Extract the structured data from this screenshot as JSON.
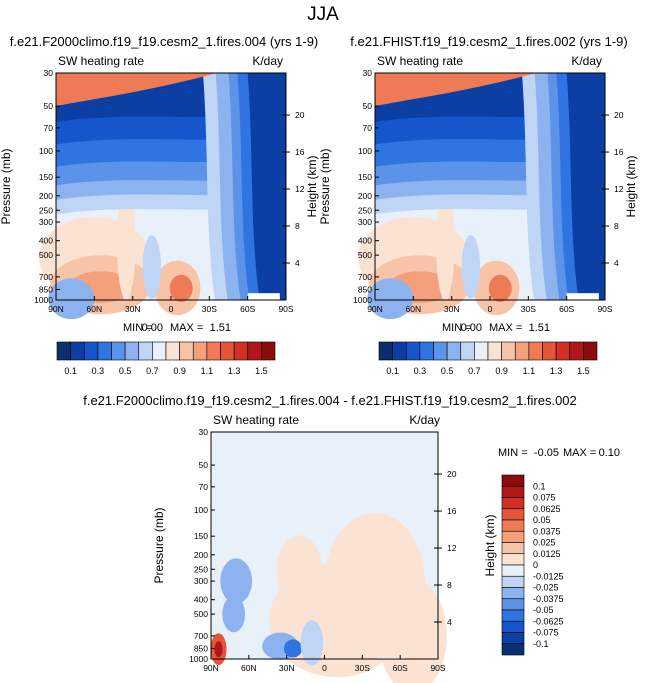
{
  "figure_title": "JJA",
  "chart_data": [
    {
      "type": "heatmap",
      "title": "f.e21.F2000climo.f19_f19.cesm2_1.fires.004 (yrs 1-9)",
      "field_label": "SW heating rate",
      "units": "K/day",
      "ylabel": "Pressure (mb)",
      "ylabel_right": "Height (km)",
      "x_ticks": [
        "90N",
        "60N",
        "30N",
        "0",
        "30S",
        "60S",
        "90S"
      ],
      "y_ticks": [
        "30",
        "50",
        "70",
        "100",
        "150",
        "200",
        "250",
        "300",
        "400",
        "500",
        "700",
        "850",
        "1000"
      ],
      "height_ticks": [
        "20",
        "16",
        "12",
        "8",
        "4"
      ],
      "xlim": [
        90,
        -90
      ],
      "ylim": [
        1000,
        30
      ],
      "y_scale": "log",
      "stats": {
        "min_label": "MIN =",
        "min": "0.00",
        "max_label": "MAX =",
        "max": "1.51"
      },
      "colorbar": {
        "orientation": "horizontal",
        "labels": [
          "0.1",
          "0.3",
          "0.5",
          "0.7",
          "0.9",
          "1.1",
          "1.3",
          "1.5"
        ],
        "colors": [
          "#08306b",
          "#0b3fa3",
          "#1556cc",
          "#2f74e0",
          "#5b93e8",
          "#8cb3ef",
          "#bfd5f5",
          "#e8f0fa",
          "#fbe3d4",
          "#f8c4a8",
          "#f4a07c",
          "#ee7b55",
          "#e5553a",
          "#d13125",
          "#b01818",
          "#8c0c0c"
        ]
      }
    },
    {
      "type": "heatmap",
      "title": "f.e21.FHIST.f19_f19.cesm2_1.fires.002 (yrs 1-9)",
      "field_label": "SW heating rate",
      "units": "K/day",
      "ylabel": "Pressure (mb)",
      "ylabel_right": "Height (km)",
      "x_ticks": [
        "90N",
        "60N",
        "30N",
        "0",
        "30S",
        "60S",
        "90S"
      ],
      "y_ticks": [
        "30",
        "50",
        "70",
        "100",
        "150",
        "200",
        "250",
        "300",
        "400",
        "500",
        "700",
        "850",
        "1000"
      ],
      "height_ticks": [
        "20",
        "16",
        "12",
        "8",
        "4"
      ],
      "xlim": [
        90,
        -90
      ],
      "ylim": [
        1000,
        30
      ],
      "y_scale": "log",
      "stats": {
        "min_label": "MIN =",
        "min": "0.00",
        "max_label": "MAX =",
        "max": "1.51"
      }
    },
    {
      "type": "heatmap",
      "title": "f.e21.F2000climo.f19_f19.cesm2_1.fires.004 - f.e21.FHIST.f19_f19.cesm2_1.fires.002",
      "field_label": "SW heating rate",
      "units": "K/day",
      "ylabel": "Pressure (mb)",
      "ylabel_right": "Height (km)",
      "x_ticks": [
        "90N",
        "60N",
        "30N",
        "0",
        "30S",
        "60S",
        "90S"
      ],
      "y_ticks": [
        "30",
        "50",
        "70",
        "100",
        "150",
        "200",
        "250",
        "300",
        "400",
        "500",
        "700",
        "850",
        "1000"
      ],
      "height_ticks": [
        "20",
        "16",
        "12",
        "8",
        "4"
      ],
      "xlim": [
        90,
        -90
      ],
      "ylim": [
        1000,
        30
      ],
      "y_scale": "log",
      "stats": {
        "min_label": "MIN =",
        "min": "-0.05",
        "max_label": "MAX =",
        "max": "0.10"
      },
      "colorbar": {
        "orientation": "vertical",
        "labels": [
          "0.1",
          "0.075",
          "0.0625",
          "0.05",
          "0.0375",
          "0.025",
          "0.0125",
          "0",
          "-0.0125",
          "-0.025",
          "-0.0375",
          "-0.05",
          "-0.0625",
          "-0.075",
          "-0.1"
        ],
        "colors": [
          "#8c0c0c",
          "#b01818",
          "#d13125",
          "#e5553a",
          "#ee7b55",
          "#f4a07c",
          "#f8c4a8",
          "#fbe3d4",
          "#e8f0fa",
          "#bfd5f5",
          "#8cb3ef",
          "#5b93e8",
          "#2f74e0",
          "#1556cc",
          "#0b3fa3",
          "#08306b"
        ]
      }
    }
  ]
}
